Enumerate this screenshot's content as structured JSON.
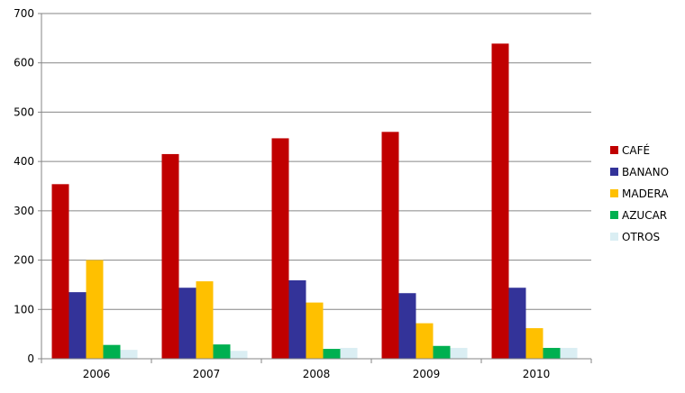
{
  "chart_data": {
    "type": "bar",
    "categories": [
      "2006",
      "2007",
      "2008",
      "2009",
      "2010"
    ],
    "series": [
      {
        "name": "CAFÉ",
        "color": "#C00000",
        "values": [
          354,
          415,
          447,
          460,
          639
        ]
      },
      {
        "name": "BANANO",
        "color": "#333399",
        "values": [
          135,
          144,
          159,
          133,
          144
        ]
      },
      {
        "name": "MADERA",
        "color": "#FFC000",
        "values": [
          200,
          157,
          114,
          72,
          62
        ]
      },
      {
        "name": "AZUCAR",
        "color": "#00B050",
        "values": [
          28,
          29,
          20,
          26,
          22
        ]
      },
      {
        "name": "OTROS",
        "color": "#DAEEF3",
        "values": [
          18,
          16,
          22,
          22,
          22
        ]
      }
    ],
    "ylim": [
      0,
      700
    ],
    "yticks": [
      0,
      100,
      200,
      300,
      400,
      500,
      600,
      700
    ],
    "grid": true,
    "legend": "right"
  }
}
